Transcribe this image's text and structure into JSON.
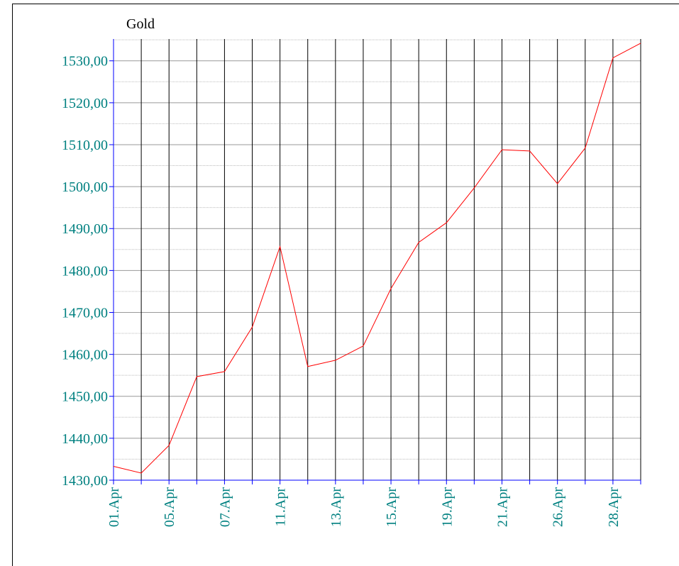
{
  "chart_data": {
    "type": "line",
    "title": "Gold",
    "categories": [
      "01.Apr",
      null,
      "05.Apr",
      null,
      "07.Apr",
      null,
      "11.Apr",
      null,
      "13.Apr",
      null,
      "15.Apr",
      null,
      "19.Apr",
      null,
      "21.Apr",
      null,
      "26.Apr",
      null,
      "28.Apr",
      null
    ],
    "series": [
      {
        "name": "Gold",
        "color": "#ff0000",
        "values": [
          1433.3,
          1431.7,
          1438.3,
          1454.7,
          1455.9,
          1466.5,
          1485.7,
          1457.1,
          1458.6,
          1462.0,
          1475.7,
          1486.7,
          1491.4,
          1499.7,
          1508.8,
          1508.5,
          1500.7,
          1509.2,
          1530.7,
          1534.2
        ]
      }
    ],
    "ylim": [
      1430,
      1535.2
    ],
    "yticks": [
      {
        "value": 1430,
        "label": "1430,00"
      },
      {
        "value": 1440,
        "label": "1440,00"
      },
      {
        "value": 1450,
        "label": "1450,00"
      },
      {
        "value": 1460,
        "label": "1460,00"
      },
      {
        "value": 1470,
        "label": "1470,00"
      },
      {
        "value": 1480,
        "label": "1480,00"
      },
      {
        "value": 1490,
        "label": "1490,00"
      },
      {
        "value": 1500,
        "label": "1500,00"
      },
      {
        "value": 1510,
        "label": "1510,00"
      },
      {
        "value": 1520,
        "label": "1520,00"
      },
      {
        "value": 1530,
        "label": "1530,00"
      }
    ],
    "minor_yticks": [
      1435,
      1445,
      1455,
      1465,
      1475,
      1485,
      1495,
      1505,
      1515,
      1525,
      1535
    ],
    "grid": true
  }
}
